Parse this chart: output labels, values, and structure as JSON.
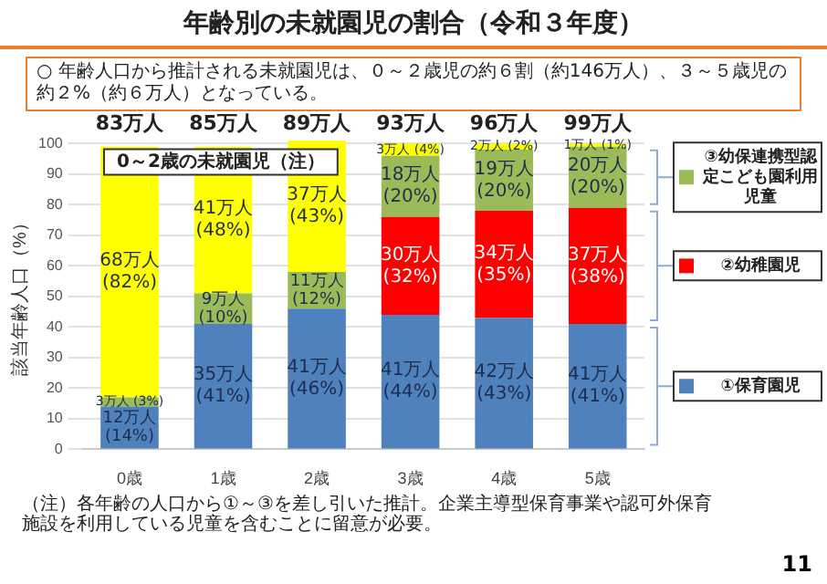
{
  "chart_data": {
    "type": "bar",
    "title": "年齢別の未就園児の割合（令和３年度）",
    "subtitle": "○ 年齢人口から推計される未就園児は、０～２歳児の約６割（約146万人）、３～５歳児の約２%（約６万人）となっている。",
    "ylabel": "該当年齢人口（%）",
    "categories": [
      "0歳",
      "1歳",
      "2歳",
      "3歳",
      "4歳",
      "5歳"
    ],
    "stacked": true,
    "series": [
      {
        "name": "①保育園児",
        "color": "#4f81bd",
        "values": [
          14,
          41,
          46,
          44,
          43,
          41
        ],
        "value_labels": [
          "12万人 (14%)",
          "35万人 (41%)",
          "41万人 (46%)",
          "41万人 (44%)",
          "42万人 (43%)",
          "41万人 (41%)"
        ]
      },
      {
        "name": "②幼稚園児",
        "color": "#ff0000",
        "values": [
          0,
          0,
          0,
          32,
          35,
          38
        ],
        "value_labels": [
          null,
          null,
          null,
          "30万人 (32%)",
          "34万人 (35%)",
          "37万人 (38%)"
        ]
      },
      {
        "name": "③幼保連携型認定こども園利用児童",
        "color": "#9bbb59",
        "values": [
          3,
          10,
          12,
          20,
          20,
          20
        ],
        "value_labels": [
          "3万人 (3%)",
          "9万人 (10%)",
          "11万人 (12%)",
          "18万人 (20%)",
          "19万人 (20%)",
          "20万人 (20%)"
        ]
      },
      {
        "name": "0～2歳の未就園児（注）",
        "color": "#ffff00",
        "values": [
          82,
          48,
          43,
          4,
          2,
          1
        ],
        "value_labels": [
          "68万人 (82%)",
          "41万人 (48%)",
          "37万人 (43%)",
          "3万人 (4%)",
          "2万人 (2%)",
          "1万人 (1%)"
        ]
      }
    ],
    "ylim": [
      0,
      101
    ],
    "yticks": [
      0,
      10,
      20,
      30,
      40,
      50,
      60,
      70,
      80,
      90,
      100
    ],
    "grid": "y",
    "legend": "right",
    "annotations": [
      "83万人",
      "85万人",
      "89万人",
      "93万人",
      "96万人",
      "99万人",
      "（注）各年齢の人口から①～③を差し引いた推計。企業主導型保育事業や認可外保育施設を利用している児童を含むことに留意が必要。",
      "11"
    ]
  }
}
